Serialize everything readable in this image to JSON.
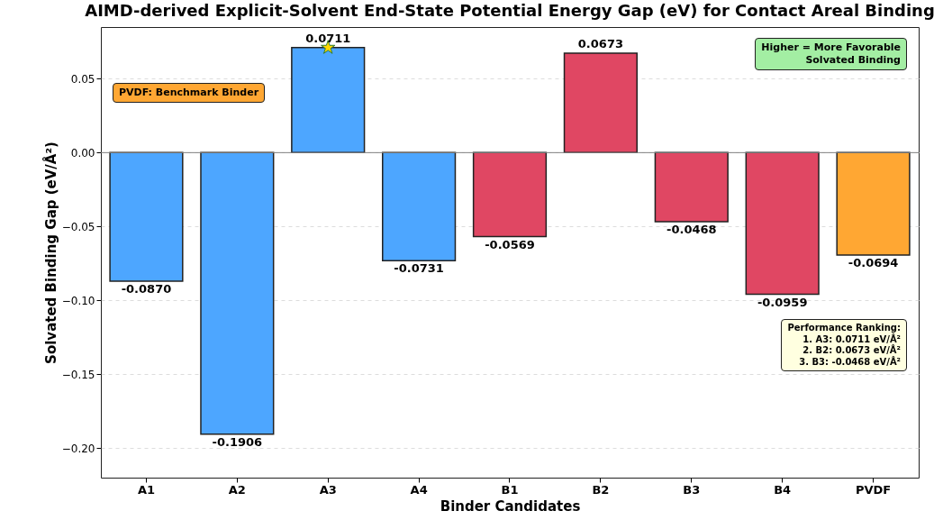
{
  "chart_data": {
    "type": "bar",
    "title": "AIMD-derived Explicit-Solvent End-State Potential Energy Gap (eV) for Contact Areal Binding",
    "xlabel": "Binder Candidates",
    "ylabel": "Solvated Binding Gap (eV/Å²)",
    "categories": [
      "A1",
      "A2",
      "A3",
      "A4",
      "B1",
      "B2",
      "B3",
      "B4",
      "PVDF"
    ],
    "series": [
      {
        "values": [
          -0.087,
          -0.1906,
          0.0711,
          -0.0731,
          -0.0569,
          0.0673,
          -0.0468,
          -0.0959,
          -0.0694
        ],
        "colors": [
          "#4da6ff",
          "#4da6ff",
          "#4da6ff",
          "#4da6ff",
          "#e04763",
          "#e04763",
          "#e04763",
          "#e04763",
          "#ffa733"
        ],
        "value_labels": [
          "-0.0870",
          "-0.1906",
          "0.0711",
          "-0.0731",
          "-0.0569",
          "0.0673",
          "-0.0468",
          "-0.0959",
          "-0.0694"
        ]
      },
      {
        "type": "scatter",
        "x": [
          "A3"
        ],
        "values": [
          0.0711
        ],
        "color": "#ffd700",
        "marker": "star"
      }
    ],
    "ylim": [
      -0.22,
      0.085
    ],
    "yticks": [
      {
        "value": -0.2,
        "label": "−0.20"
      },
      {
        "value": -0.15,
        "label": "−0.15"
      },
      {
        "value": -0.1,
        "label": "−0.10"
      },
      {
        "value": -0.05,
        "label": "−0.05"
      },
      {
        "value": 0,
        "label": "0.00"
      },
      {
        "value": 0.05,
        "label": "0.05"
      }
    ],
    "grid": "y",
    "ref_lines": [
      {
        "axis": "y",
        "value": 0,
        "color": "#808080"
      }
    ],
    "annotations": [
      "PVDF: Benchmark Binder",
      "Higher = More Favorable\nSolvated Binding",
      "Performance Ranking:\n1. A3: 0.0711 eV/Å²\n2. B2: 0.0673 eV/Å²\n3. B3: -0.0468 eV/Å²"
    ]
  }
}
